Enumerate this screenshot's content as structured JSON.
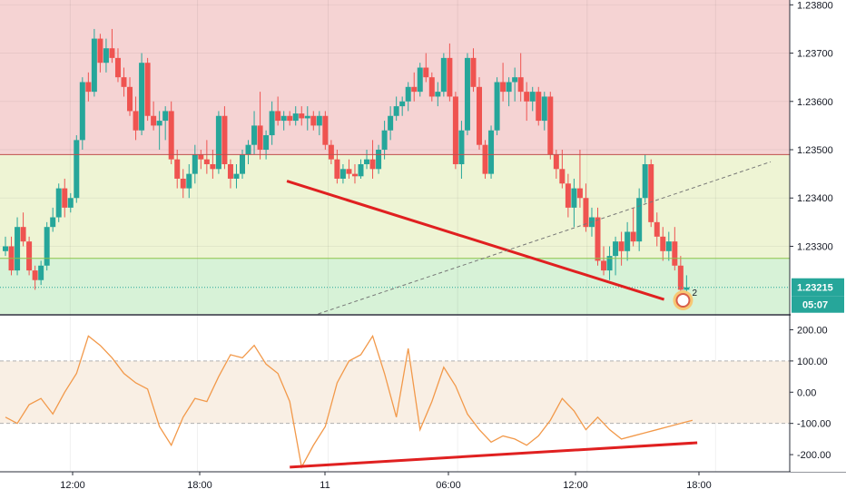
{
  "chart_data": [
    {
      "type": "candlestick",
      "price_axis": {
        "range": [
          1.2316,
          1.2381
        ],
        "ticks": [
          "1.23800",
          "1.23700",
          "1.23600",
          "1.23500",
          "1.23400",
          "1.23300"
        ]
      },
      "time_axis": {
        "ticks": [
          "12:00",
          "18:00",
          "11",
          "06:00",
          "12:00",
          "18:00"
        ]
      },
      "last_price": "1.23215",
      "countdown": "05:07",
      "event_badge_count": "2",
      "zones": [
        {
          "from": 1.2349,
          "to": 1.2381,
          "color": "#f5d3d3"
        },
        {
          "from": 1.23275,
          "to": 1.2349,
          "color": "#eef4d4"
        },
        {
          "from": 1.2316,
          "to": 1.23275,
          "color": "#d7f2d7"
        }
      ],
      "horizontal_lines": [
        {
          "price": 1.2349,
          "color": "#c0504d"
        },
        {
          "price": 1.23275,
          "color": "#8bc34a"
        }
      ],
      "trendline": {
        "from": [
          11.88,
          1.23435
        ],
        "to": [
          27.8,
          1.2319
        ],
        "color": "#e02020"
      },
      "dashed_trend": {
        "from": [
          13.2,
          1.2316
        ],
        "to": [
          32.3,
          1.23475
        ],
        "color": "#777777"
      },
      "candles": [
        [
          0.0,
          1.2329,
          1.2332,
          1.2328,
          1.233
        ],
        [
          0.25,
          1.233,
          1.2332,
          1.2324,
          1.2325
        ],
        [
          0.5,
          1.2325,
          1.2336,
          1.2324,
          1.2334
        ],
        [
          0.75,
          1.2334,
          1.2337,
          1.233,
          1.2331
        ],
        [
          1.0,
          1.2331,
          1.2332,
          1.2324,
          1.2325
        ],
        [
          1.25,
          1.2325,
          1.2326,
          1.2321,
          1.2323
        ],
        [
          1.5,
          1.2323,
          1.2327,
          1.2322,
          1.2326
        ],
        [
          1.75,
          1.2326,
          1.2335,
          1.2325,
          1.2334
        ],
        [
          2.0,
          1.2334,
          1.2338,
          1.2333,
          1.2336
        ],
        [
          2.25,
          1.2336,
          1.2343,
          1.2335,
          1.2342
        ],
        [
          2.5,
          1.2342,
          1.2344,
          1.2336,
          1.2338
        ],
        [
          2.75,
          1.2338,
          1.2341,
          1.2337,
          1.234
        ],
        [
          3.0,
          1.234,
          1.2353,
          1.2339,
          1.2352
        ],
        [
          3.25,
          1.2352,
          1.2365,
          1.235,
          1.2364
        ],
        [
          3.5,
          1.2364,
          1.2366,
          1.236,
          1.2362
        ],
        [
          3.75,
          1.2362,
          1.2375,
          1.2361,
          1.2373
        ],
        [
          4.0,
          1.2373,
          1.2374,
          1.2366,
          1.2368
        ],
        [
          4.25,
          1.2368,
          1.2373,
          1.2366,
          1.2371
        ],
        [
          4.5,
          1.2371,
          1.2375,
          1.2368,
          1.2369
        ],
        [
          4.75,
          1.2369,
          1.2371,
          1.2364,
          1.2365
        ],
        [
          5.0,
          1.2365,
          1.2367,
          1.2361,
          1.2363
        ],
        [
          5.25,
          1.2363,
          1.2365,
          1.2357,
          1.2358
        ],
        [
          5.5,
          1.2358,
          1.2361,
          1.2352,
          1.2354
        ],
        [
          5.75,
          1.2354,
          1.237,
          1.2353,
          1.2368
        ],
        [
          6.0,
          1.2368,
          1.2369,
          1.2356,
          1.2357
        ],
        [
          6.25,
          1.2357,
          1.236,
          1.2354,
          1.2355
        ],
        [
          6.5,
          1.2355,
          1.2358,
          1.235,
          1.2356
        ],
        [
          6.75,
          1.2356,
          1.2359,
          1.2352,
          1.2358
        ],
        [
          7.0,
          1.2358,
          1.236,
          1.2347,
          1.2348
        ],
        [
          7.25,
          1.2348,
          1.235,
          1.2342,
          1.2344
        ],
        [
          7.5,
          1.2344,
          1.2346,
          1.234,
          1.2342
        ],
        [
          7.75,
          1.2342,
          1.2347,
          1.234,
          1.2345
        ],
        [
          8.0,
          1.2345,
          1.2351,
          1.2343,
          1.2349
        ],
        [
          8.25,
          1.2349,
          1.235,
          1.2346,
          1.2348
        ],
        [
          8.5,
          1.2348,
          1.2352,
          1.2345,
          1.2347
        ],
        [
          8.75,
          1.2347,
          1.235,
          1.2344,
          1.2346
        ],
        [
          9.0,
          1.2346,
          1.2358,
          1.2345,
          1.2357
        ],
        [
          9.25,
          1.2357,
          1.2359,
          1.2346,
          1.2347
        ],
        [
          9.5,
          1.2347,
          1.2348,
          1.2342,
          1.2344
        ],
        [
          9.75,
          1.2344,
          1.2347,
          1.2342,
          1.2345
        ],
        [
          10.0,
          1.2345,
          1.235,
          1.2344,
          1.2349
        ],
        [
          10.25,
          1.2349,
          1.2352,
          1.2347,
          1.2351
        ],
        [
          10.5,
          1.2351,
          1.2358,
          1.2349,
          1.2355
        ],
        [
          10.75,
          1.2355,
          1.2362,
          1.2348,
          1.235
        ],
        [
          11.0,
          1.235,
          1.2354,
          1.2348,
          1.2353
        ],
        [
          11.25,
          1.2353,
          1.236,
          1.2351,
          1.2358
        ],
        [
          11.5,
          1.2358,
          1.2361,
          1.2355,
          1.2356
        ],
        [
          11.75,
          1.2356,
          1.2358,
          1.2354,
          1.2357
        ],
        [
          12.0,
          1.2357,
          1.2358,
          1.2355,
          1.2356
        ],
        [
          12.25,
          1.2356,
          1.2359,
          1.2355,
          1.23575
        ],
        [
          12.5,
          1.23575,
          1.2359,
          1.2355,
          1.23565
        ],
        [
          12.75,
          1.23565,
          1.2359,
          1.2354,
          1.2357
        ],
        [
          13.0,
          1.2357,
          1.2358,
          1.2354,
          1.2355
        ],
        [
          13.25,
          1.2355,
          1.2358,
          1.2353,
          1.2357
        ],
        [
          13.5,
          1.2357,
          1.2358,
          1.235,
          1.2351
        ],
        [
          13.75,
          1.2351,
          1.2352,
          1.2347,
          1.2348
        ],
        [
          14.0,
          1.2348,
          1.235,
          1.2343,
          1.2344
        ],
        [
          14.25,
          1.2344,
          1.2347,
          1.2343,
          1.2346
        ],
        [
          14.5,
          1.2346,
          1.2348,
          1.2344,
          1.2345
        ],
        [
          14.75,
          1.2345,
          1.2347,
          1.2343,
          1.23445
        ],
        [
          15.0,
          1.23445,
          1.2348,
          1.2344,
          1.2347
        ],
        [
          15.25,
          1.2347,
          1.235,
          1.2346,
          1.2348
        ],
        [
          15.5,
          1.2348,
          1.2352,
          1.2344,
          1.2346
        ],
        [
          15.75,
          1.2346,
          1.2351,
          1.2345,
          1.235
        ],
        [
          16.0,
          1.235,
          1.2356,
          1.2348,
          1.2354
        ],
        [
          16.25,
          1.2354,
          1.2359,
          1.2352,
          1.2357
        ],
        [
          16.5,
          1.2357,
          1.2361,
          1.2356,
          1.2359
        ],
        [
          16.75,
          1.2359,
          1.2361,
          1.2357,
          1.236
        ],
        [
          17.0,
          1.236,
          1.2364,
          1.2358,
          1.2363
        ],
        [
          17.25,
          1.2363,
          1.2366,
          1.236,
          1.2362
        ],
        [
          17.5,
          1.2362,
          1.2368,
          1.2361,
          1.2367
        ],
        [
          17.75,
          1.2367,
          1.237,
          1.2364,
          1.2365
        ],
        [
          18.0,
          1.2365,
          1.2366,
          1.236,
          1.2361
        ],
        [
          18.25,
          1.2361,
          1.2364,
          1.2359,
          1.2362
        ],
        [
          18.5,
          1.2362,
          1.237,
          1.2361,
          1.2369
        ],
        [
          18.75,
          1.2369,
          1.2372,
          1.236,
          1.2361
        ],
        [
          19.0,
          1.2361,
          1.2362,
          1.2346,
          1.2347
        ],
        [
          19.25,
          1.2347,
          1.2356,
          1.2344,
          1.2354
        ],
        [
          19.5,
          1.2354,
          1.237,
          1.2353,
          1.2369
        ],
        [
          19.75,
          1.2369,
          1.2371,
          1.2362,
          1.2363
        ],
        [
          20.0,
          1.2363,
          1.2365,
          1.235,
          1.2351
        ],
        [
          20.25,
          1.2351,
          1.2352,
          1.2344,
          1.2345
        ],
        [
          20.5,
          1.2345,
          1.2355,
          1.2344,
          1.2354
        ],
        [
          20.75,
          1.2354,
          1.2365,
          1.2353,
          1.2364
        ],
        [
          21.0,
          1.2364,
          1.2368,
          1.236,
          1.2362
        ],
        [
          21.25,
          1.2362,
          1.2365,
          1.2359,
          1.2364
        ],
        [
          21.5,
          1.2364,
          1.2367,
          1.236,
          1.2365
        ],
        [
          21.75,
          1.2365,
          1.237,
          1.236,
          1.2362
        ],
        [
          22.0,
          1.2362,
          1.2364,
          1.2356,
          1.236
        ],
        [
          22.25,
          1.236,
          1.2363,
          1.2358,
          1.2362
        ],
        [
          22.5,
          1.2362,
          1.2363,
          1.2355,
          1.2356
        ],
        [
          22.75,
          1.2356,
          1.2362,
          1.2354,
          1.2361
        ],
        [
          23.0,
          1.2361,
          1.2362,
          1.2348,
          1.2349
        ],
        [
          23.25,
          1.2349,
          1.235,
          1.2344,
          1.2346
        ],
        [
          23.5,
          1.2346,
          1.235,
          1.2342,
          1.2343
        ],
        [
          23.75,
          1.2343,
          1.2345,
          1.2336,
          1.2338
        ],
        [
          24.0,
          1.2338,
          1.2344,
          1.2334,
          1.2342
        ],
        [
          24.25,
          1.2342,
          1.235,
          1.2338,
          1.234
        ],
        [
          24.5,
          1.234,
          1.2343,
          1.2333,
          1.2334
        ],
        [
          24.75,
          1.2334,
          1.2338,
          1.2332,
          1.2336
        ],
        [
          25.0,
          1.2336,
          1.2338,
          1.2326,
          1.2327
        ],
        [
          25.25,
          1.2327,
          1.233,
          1.2324,
          1.2325
        ],
        [
          25.5,
          1.2325,
          1.233,
          1.2323,
          1.2328
        ],
        [
          25.75,
          1.2328,
          1.2332,
          1.2324,
          1.2331
        ],
        [
          26.0,
          1.2331,
          1.2333,
          1.2326,
          1.2329
        ],
        [
          26.25,
          1.2329,
          1.2335,
          1.2327,
          1.2333
        ],
        [
          26.5,
          1.2333,
          1.2338,
          1.233,
          1.2331
        ],
        [
          26.75,
          1.2331,
          1.2342,
          1.2329,
          1.234
        ],
        [
          27.0,
          1.234,
          1.2349,
          1.2339,
          1.2347
        ],
        [
          27.25,
          1.2347,
          1.2348,
          1.2334,
          1.2335
        ],
        [
          27.5,
          1.2335,
          1.2337,
          1.233,
          1.2332
        ],
        [
          27.75,
          1.2332,
          1.2334,
          1.2327,
          1.2329
        ],
        [
          28.0,
          1.2329,
          1.2333,
          1.2327,
          1.2331
        ],
        [
          28.25,
          1.2331,
          1.2334,
          1.2325,
          1.2326
        ],
        [
          28.5,
          1.2326,
          1.2328,
          1.232,
          1.2321
        ],
        [
          28.75,
          1.2321,
          1.2324,
          1.2319,
          1.23215
        ]
      ]
    },
    {
      "type": "line",
      "range": [
        -255,
        245
      ],
      "ticks": [
        "200.00",
        "100.00",
        "0.00",
        "-100.00",
        "-200.00"
      ],
      "levels": [
        100,
        -100
      ],
      "color": "#f2994a",
      "x": [
        0,
        0.5,
        1,
        1.5,
        2,
        2.5,
        3,
        3.5,
        4,
        4.5,
        5,
        5.5,
        6,
        6.5,
        7,
        7.5,
        8,
        8.5,
        9,
        9.5,
        10,
        10.5,
        11,
        11.5,
        12,
        12.5,
        13,
        13.5,
        14,
        14.5,
        15,
        15.5,
        16,
        16.5,
        17,
        17.5,
        18,
        18.5,
        19,
        19.5,
        20,
        20.5,
        21,
        21.5,
        22,
        22.5,
        23,
        23.5,
        24,
        24.5,
        25,
        25.5,
        26,
        26.5,
        27,
        27.5,
        28,
        28.5,
        29
      ],
      "values": [
        -80,
        -100,
        -40,
        -20,
        -70,
        0,
        60,
        180,
        150,
        110,
        60,
        30,
        10,
        -110,
        -170,
        -80,
        -20,
        -30,
        50,
        120,
        110,
        150,
        90,
        60,
        -30,
        -240,
        -170,
        -110,
        30,
        100,
        120,
        180,
        60,
        -80,
        140,
        -120,
        -30,
        80,
        20,
        -70,
        -120,
        -160,
        -140,
        -150,
        -170,
        -140,
        -90,
        -20,
        -60,
        -120,
        -80,
        -120,
        -150,
        -140,
        -130,
        -120,
        -110,
        -100,
        -90
      ]
    }
  ],
  "oscillator_trendline": {
    "from": [
      12.0,
      -240
    ],
    "to": [
      29.2,
      -162
    ],
    "color": "#e02020"
  }
}
